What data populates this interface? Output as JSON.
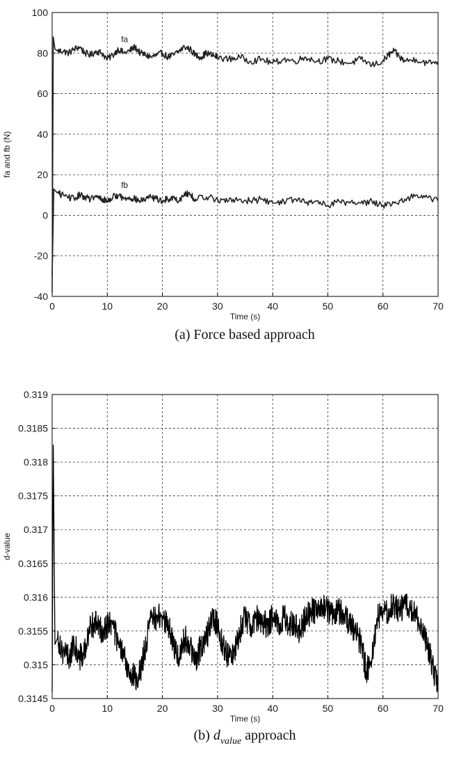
{
  "chart_data": [
    {
      "type": "line",
      "xlabel": "Time (s)",
      "ylabel": "fa and fb (N)",
      "xlim": [
        0,
        70
      ],
      "ylim": [
        -40,
        100
      ],
      "xticks": [
        "0",
        "10",
        "20",
        "30",
        "40",
        "50",
        "60",
        "70"
      ],
      "yticks": [
        "100",
        "80",
        "60",
        "40",
        "20",
        "0",
        "-20",
        "-40"
      ],
      "grid": true,
      "caption": "(a) Force based approach",
      "series": [
        {
          "name": "fa",
          "color": "#222222",
          "x": [
            0,
            0.2,
            0.5,
            1,
            2,
            3,
            4,
            5,
            6,
            7,
            8,
            9,
            10,
            11,
            12,
            13,
            14,
            15,
            16,
            17,
            18,
            19,
            20,
            21,
            22,
            23,
            24,
            25,
            26,
            27,
            28,
            29,
            30,
            32,
            34,
            36,
            38,
            40,
            42,
            44,
            46,
            48,
            50,
            52,
            54,
            56,
            58,
            60,
            61,
            62,
            63,
            64,
            66,
            68,
            70
          ],
          "y": [
            -38,
            88,
            82,
            81,
            81,
            80,
            82,
            83,
            80,
            79,
            81,
            80,
            77,
            79,
            82,
            80,
            81,
            83,
            80,
            79,
            78,
            79,
            80,
            78,
            79,
            81,
            83,
            82,
            79,
            78,
            80,
            79,
            78,
            77,
            78,
            76,
            77,
            75,
            77,
            76,
            78,
            76,
            77,
            76,
            75,
            77,
            74,
            76,
            79,
            81,
            78,
            76,
            77,
            75,
            76
          ]
        },
        {
          "name": "fb",
          "color": "#222222",
          "x": [
            0,
            0.3,
            0.6,
            1,
            2,
            3,
            4,
            5,
            6,
            7,
            8,
            9,
            10,
            11,
            12,
            13,
            14,
            15,
            16,
            17,
            18,
            19,
            20,
            21,
            22,
            23,
            24,
            25,
            26,
            28,
            30,
            32,
            34,
            36,
            38,
            40,
            42,
            44,
            46,
            48,
            50,
            52,
            54,
            56,
            58,
            60,
            62,
            64,
            66,
            68,
            70
          ],
          "y": [
            -30,
            13,
            12,
            11,
            10,
            9,
            8,
            10,
            9,
            8,
            9,
            8,
            7,
            9,
            10,
            8,
            9,
            8,
            7,
            8,
            9,
            8,
            7,
            8,
            9,
            7,
            11,
            10,
            8,
            9,
            8,
            7,
            8,
            7,
            8,
            6,
            7,
            8,
            6,
            7,
            5,
            7,
            6,
            6,
            7,
            5,
            6,
            8,
            10,
            9,
            7
          ]
        }
      ]
    },
    {
      "type": "line",
      "xlabel": "Time (s)",
      "ylabel": "d-value",
      "xlim": [
        0,
        70
      ],
      "ylim": [
        0.3145,
        0.319
      ],
      "xticks": [
        "0",
        "10",
        "20",
        "30",
        "40",
        "50",
        "60",
        "70"
      ],
      "yticks": [
        "0.319",
        "0.3185",
        "0.318",
        "0.3175",
        "0.317",
        "0.3165",
        "0.316",
        "0.3155",
        "0.315",
        "0.3145"
      ],
      "grid": true,
      "caption": {
        "prefix": "(b) ",
        "var": "d",
        "sub": "value",
        "suffix": " approach"
      },
      "series": [
        {
          "color": "#000000",
          "x": [
            0,
            0.2,
            0.5,
            1,
            2,
            3,
            4,
            5,
            6,
            7,
            8,
            9,
            10,
            11,
            12,
            13,
            14,
            15,
            16,
            17,
            18,
            19,
            20,
            21,
            22,
            23,
            24,
            25,
            26,
            27,
            28,
            29,
            30,
            31,
            32,
            33,
            34,
            35,
            36,
            37,
            38,
            39,
            40,
            41,
            42,
            43,
            44,
            45,
            46,
            47,
            48,
            49,
            50,
            51,
            52,
            53,
            54,
            55,
            56,
            57,
            58,
            59,
            60,
            61,
            62,
            63,
            64,
            65,
            66,
            67,
            68,
            69,
            70
          ],
          "y": [
            0.3146,
            0.31825,
            0.3153,
            0.3154,
            0.3152,
            0.3151,
            0.3153,
            0.3151,
            0.3152,
            0.3156,
            0.3156,
            0.3155,
            0.3156,
            0.3156,
            0.3153,
            0.3151,
            0.3149,
            0.3148,
            0.3149,
            0.3153,
            0.3157,
            0.3157,
            0.3157,
            0.3156,
            0.3153,
            0.3151,
            0.3154,
            0.3153,
            0.315,
            0.3153,
            0.3154,
            0.3157,
            0.3156,
            0.3153,
            0.3151,
            0.3152,
            0.3155,
            0.3157,
            0.3156,
            0.3157,
            0.3156,
            0.3156,
            0.3157,
            0.3156,
            0.3157,
            0.3156,
            0.3156,
            0.3155,
            0.3157,
            0.3158,
            0.3158,
            0.3159,
            0.3158,
            0.3157,
            0.3158,
            0.3157,
            0.3156,
            0.3155,
            0.3153,
            0.3149,
            0.3151,
            0.3157,
            0.3158,
            0.3158,
            0.3159,
            0.3158,
            0.3159,
            0.3158,
            0.3157,
            0.3156,
            0.3153,
            0.315,
            0.3146
          ]
        }
      ]
    }
  ]
}
